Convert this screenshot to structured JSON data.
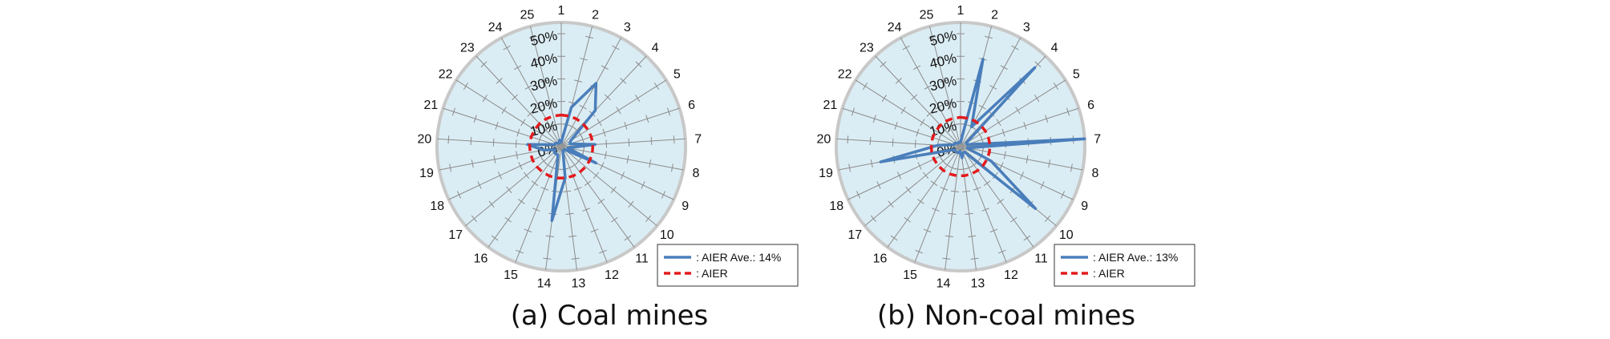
{
  "chart_data": [
    {
      "type": "radar",
      "caption": "(a) Coal mines",
      "categories": [
        "1",
        "2",
        "3",
        "4",
        "5",
        "6",
        "7",
        "8",
        "9",
        "10",
        "11",
        "12",
        "13",
        "14",
        "15",
        "16",
        "17",
        "18",
        "19",
        "20",
        "21",
        "22",
        "23",
        "24",
        "25"
      ],
      "tick_labels": [
        "0%",
        "10%",
        "20%",
        "30%",
        "40%",
        "50%"
      ],
      "rmax": 55,
      "series": [
        {
          "name": ": AIER Ave.: 14%",
          "style": "solid",
          "color": "#4a7ebb",
          "values": [
            2,
            18,
            32,
            22,
            5,
            4,
            15,
            3,
            17,
            2,
            2,
            2,
            14,
            33,
            4,
            4,
            4,
            3,
            8,
            15,
            3,
            3,
            2,
            2,
            3
          ]
        },
        {
          "name": ": AIER",
          "style": "dashed",
          "color": "#e41a1c",
          "values": [
            14,
            14,
            14,
            14,
            14,
            14,
            14,
            14,
            14,
            14,
            14,
            14,
            14,
            14,
            14,
            14,
            14,
            14,
            14,
            14,
            14,
            14,
            14,
            14,
            14
          ]
        }
      ]
    },
    {
      "type": "radar",
      "caption": "(b) Non-coal mines",
      "categories": [
        "1",
        "2",
        "3",
        "4",
        "5",
        "6",
        "7",
        "8",
        "9",
        "10",
        "11",
        "12",
        "13",
        "14",
        "15",
        "16",
        "17",
        "18",
        "19",
        "20",
        "21",
        "22",
        "23",
        "24",
        "25"
      ],
      "tick_labels": [
        "0%",
        "10%",
        "20%",
        "30%",
        "40%",
        "50%"
      ],
      "rmax": 55,
      "series": [
        {
          "name": ": AIER Ave.: 13%",
          "style": "solid",
          "color": "#4a7ebb",
          "values": [
            2,
            40,
            10,
            48,
            3,
            3,
            55,
            3,
            15,
            43,
            3,
            3,
            5,
            2,
            3,
            3,
            3,
            3,
            36,
            10,
            3,
            3,
            2,
            2,
            2
          ]
        },
        {
          "name": ": AIER",
          "style": "dashed",
          "color": "#e41a1c",
          "values": [
            13,
            13,
            13,
            13,
            13,
            13,
            13,
            13,
            13,
            13,
            13,
            13,
            13,
            13,
            13,
            13,
            13,
            13,
            13,
            13,
            13,
            13,
            13,
            13,
            13
          ]
        }
      ]
    }
  ]
}
